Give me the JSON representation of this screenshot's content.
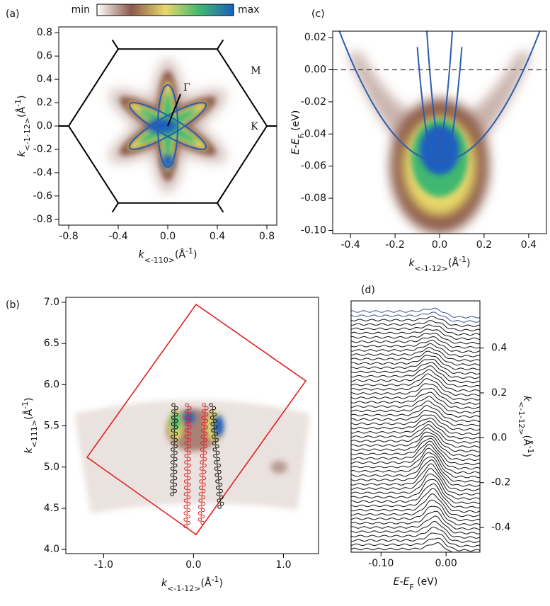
{
  "colorbar": {
    "min": "min",
    "max": "max",
    "colors": [
      "#ffffff",
      "#8b5a4a",
      "#e8d86a",
      "#3fb870",
      "#1a5fc0"
    ]
  },
  "chart_data": [
    {
      "type": "heatmap",
      "panel_label": "(a)",
      "xlabel": {
        "base": "k",
        "sub": "<-110>",
        "unit": "(Å",
        "sup": "-1",
        "end": ")"
      },
      "ylabel": {
        "base": "k",
        "sub": "<-1-12>",
        "unit": "(Å",
        "sup": "-1",
        "end": ")"
      },
      "xlim": [
        -0.88,
        0.88
      ],
      "ylim": [
        -0.85,
        0.85
      ],
      "xticks": [
        -0.8,
        -0.4,
        {
          "value": 0,
          "label": "0.0"
        },
        0.4,
        0.8
      ],
      "yticks": [
        -0.8,
        -0.6,
        -0.4,
        -0.2,
        {
          "value": 0,
          "label": "0.0"
        },
        0.2,
        0.4,
        0.6,
        0.8
      ],
      "annotations": [
        "Γ",
        "M",
        "K"
      ],
      "yaxis_side": "left"
    },
    {
      "type": "heatmap",
      "panel_label": "(c)",
      "xlabel": {
        "base": "k",
        "sub": "<-1-12>",
        "unit": "(Å",
        "sup": "-1",
        "end": ")"
      },
      "ylabel": {
        "base": "E-E",
        "sub": "F",
        "unit": " (eV)"
      },
      "xlim": [
        -0.48,
        0.48
      ],
      "ylim": [
        -0.102,
        0.024
      ],
      "xticks": [
        -0.4,
        -0.2,
        {
          "value": 0,
          "label": "0.0"
        },
        0.2,
        0.4
      ],
      "yticks": [
        0.02,
        {
          "value": 0,
          "label": "0.00"
        },
        -0.02,
        -0.04,
        -0.06,
        -0.08,
        {
          "value": -0.1,
          "label": "-0.10"
        }
      ],
      "reference_line": 0,
      "yaxis_side": "left"
    },
    {
      "type": "heatmap",
      "panel_label": "(b)",
      "xlabel": {
        "base": "k",
        "sub": "<-1-12>",
        "unit": "(Å",
        "sup": "-1",
        "end": ")"
      },
      "ylabel": {
        "base": "k",
        "sub": "<111>",
        "unit": "(Å",
        "sup": "-1",
        "end": ")"
      },
      "xlim": [
        -1.42,
        1.39
      ],
      "ylim": [
        3.95,
        7.06
      ],
      "xticks": [
        {
          "value": -1,
          "label": "-1.0"
        },
        {
          "value": 0,
          "label": "0.0"
        },
        {
          "value": 1,
          "label": "1.0"
        }
      ],
      "yticks": [
        {
          "value": 4,
          "label": "4.0"
        },
        4.5,
        {
          "value": 5,
          "label": "5.0"
        },
        5.5,
        {
          "value": 6,
          "label": "6.0"
        },
        6.5,
        {
          "value": 7,
          "label": "7.0"
        }
      ],
      "yaxis_side": "left"
    },
    {
      "type": "edc",
      "panel_label": "(d)",
      "xlabel": {
        "base": "E-E",
        "sub": "F",
        "unit": " (eV)"
      },
      "ylabel": {
        "base": "k",
        "sub": "<-1-12>",
        "unit": "(Å",
        "sup": "-1",
        "end": ")"
      },
      "xlim": [
        -0.146,
        0.052
      ],
      "ylim": [
        -0.51,
        0.61
      ],
      "xticks": [
        {
          "value": -0.1,
          "label": "-0.10"
        },
        {
          "value": 0,
          "label": "0.00"
        }
      ],
      "yticks": [
        -0.4,
        -0.2,
        {
          "value": 0,
          "label": "0.0"
        },
        0.2,
        0.4
      ],
      "yaxis_side": "right"
    }
  ]
}
